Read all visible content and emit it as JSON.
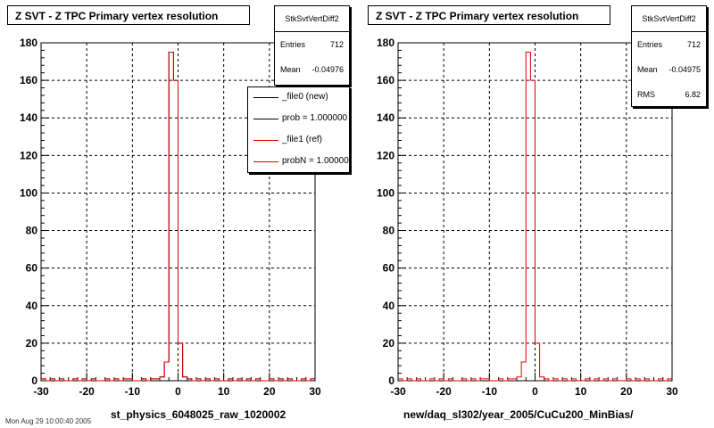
{
  "colors": {
    "new": "#000000",
    "ref": "#e00000",
    "grid": "#000000"
  },
  "panels": [
    {
      "title": "Z SVT - Z TPC Primary vertex resolution",
      "stats": {
        "name": "StkSvtVertDiff2",
        "rows": [
          {
            "label": "Entries",
            "value": "712"
          },
          {
            "label": "Mean",
            "value": "-0.04976"
          }
        ]
      },
      "legend": [
        {
          "text": "_file0 (new)",
          "color": "#000000"
        },
        {
          "text": "prob = 1.000000",
          "color": "#000000"
        },
        {
          "text": "_file1 (ref)",
          "color": "#e00000"
        },
        {
          "text": "probN = 1.000000",
          "color": "#e00000"
        }
      ],
      "xlabel": "st_physics_6048025_raw_1020002"
    },
    {
      "title": "Z SVT - Z TPC Primary vertex resolution",
      "stats": {
        "name": "StkSvtVertDiff2",
        "rows": [
          {
            "label": "Entries",
            "value": "712"
          },
          {
            "label": "Mean",
            "value": "-0.04975"
          },
          {
            "label": "RMS",
            "value": "6.82"
          }
        ]
      },
      "xlabel": "new/daq_sl302/year_2005/CuCu200_MinBias/"
    }
  ],
  "footnote": "Mon Aug 29 10:00:40 2005",
  "chart_data": [
    {
      "type": "histogram",
      "title": "Z SVT - Z TPC Primary vertex resolution",
      "xlabel": "st_physics_6048025_raw_1020002",
      "xlim": [
        -30,
        30
      ],
      "ylim": [
        0,
        180
      ],
      "xticks": [
        -30,
        -20,
        -10,
        0,
        10,
        20,
        30
      ],
      "yticks": [
        0,
        20,
        40,
        60,
        80,
        100,
        120,
        140,
        160,
        180
      ],
      "grid": true,
      "legend_position": "top-right",
      "bins": {
        "min": -30,
        "width": 1
      },
      "series": [
        {
          "name": "_file0 (new)",
          "color": "#000000",
          "values": [
            1,
            0,
            1,
            0,
            1,
            0,
            0,
            1,
            0,
            1,
            0,
            1,
            0,
            0,
            1,
            0,
            1,
            0,
            1,
            1,
            0,
            0,
            1,
            0,
            1,
            1,
            2,
            10,
            175,
            160,
            20,
            2,
            1,
            0,
            1,
            0,
            1,
            0,
            1,
            0,
            0,
            1,
            0,
            1,
            0,
            1,
            0,
            1,
            0,
            0,
            1,
            0,
            1,
            0,
            1,
            0,
            0,
            1,
            0,
            1
          ]
        },
        {
          "name": "_file1 (ref)",
          "color": "#e00000",
          "values": [
            1,
            0,
            1,
            0,
            1,
            0,
            0,
            1,
            0,
            1,
            0,
            1,
            0,
            0,
            1,
            0,
            1,
            0,
            1,
            1,
            0,
            0,
            1,
            0,
            1,
            1,
            2,
            10,
            175,
            160,
            20,
            2,
            1,
            0,
            1,
            0,
            1,
            0,
            1,
            0,
            0,
            1,
            0,
            1,
            0,
            1,
            0,
            1,
            0,
            0,
            1,
            0,
            1,
            0,
            1,
            0,
            0,
            1,
            0,
            1
          ]
        }
      ]
    },
    {
      "type": "histogram",
      "title": "Z SVT - Z TPC Primary vertex resolution",
      "xlabel": "new/daq_sl302/year_2005/CuCu200_MinBias/",
      "xlim": [
        -30,
        30
      ],
      "ylim": [
        0,
        180
      ],
      "xticks": [
        -30,
        -20,
        -10,
        0,
        10,
        20,
        30
      ],
      "yticks": [
        0,
        20,
        40,
        60,
        80,
        100,
        120,
        140,
        160,
        180
      ],
      "grid": true,
      "bins": {
        "min": -30,
        "width": 1
      },
      "series": [
        {
          "color": "#e00000",
          "values": [
            1,
            0,
            1,
            0,
            1,
            0,
            0,
            1,
            0,
            1,
            0,
            1,
            0,
            0,
            1,
            0,
            1,
            0,
            1,
            1,
            0,
            0,
            1,
            0,
            1,
            1,
            2,
            10,
            175,
            160,
            20,
            2,
            1,
            0,
            1,
            0,
            1,
            0,
            1,
            0,
            0,
            1,
            0,
            1,
            0,
            1,
            0,
            1,
            0,
            0,
            1,
            0,
            1,
            0,
            1,
            0,
            0,
            1,
            0,
            1
          ]
        }
      ]
    }
  ]
}
